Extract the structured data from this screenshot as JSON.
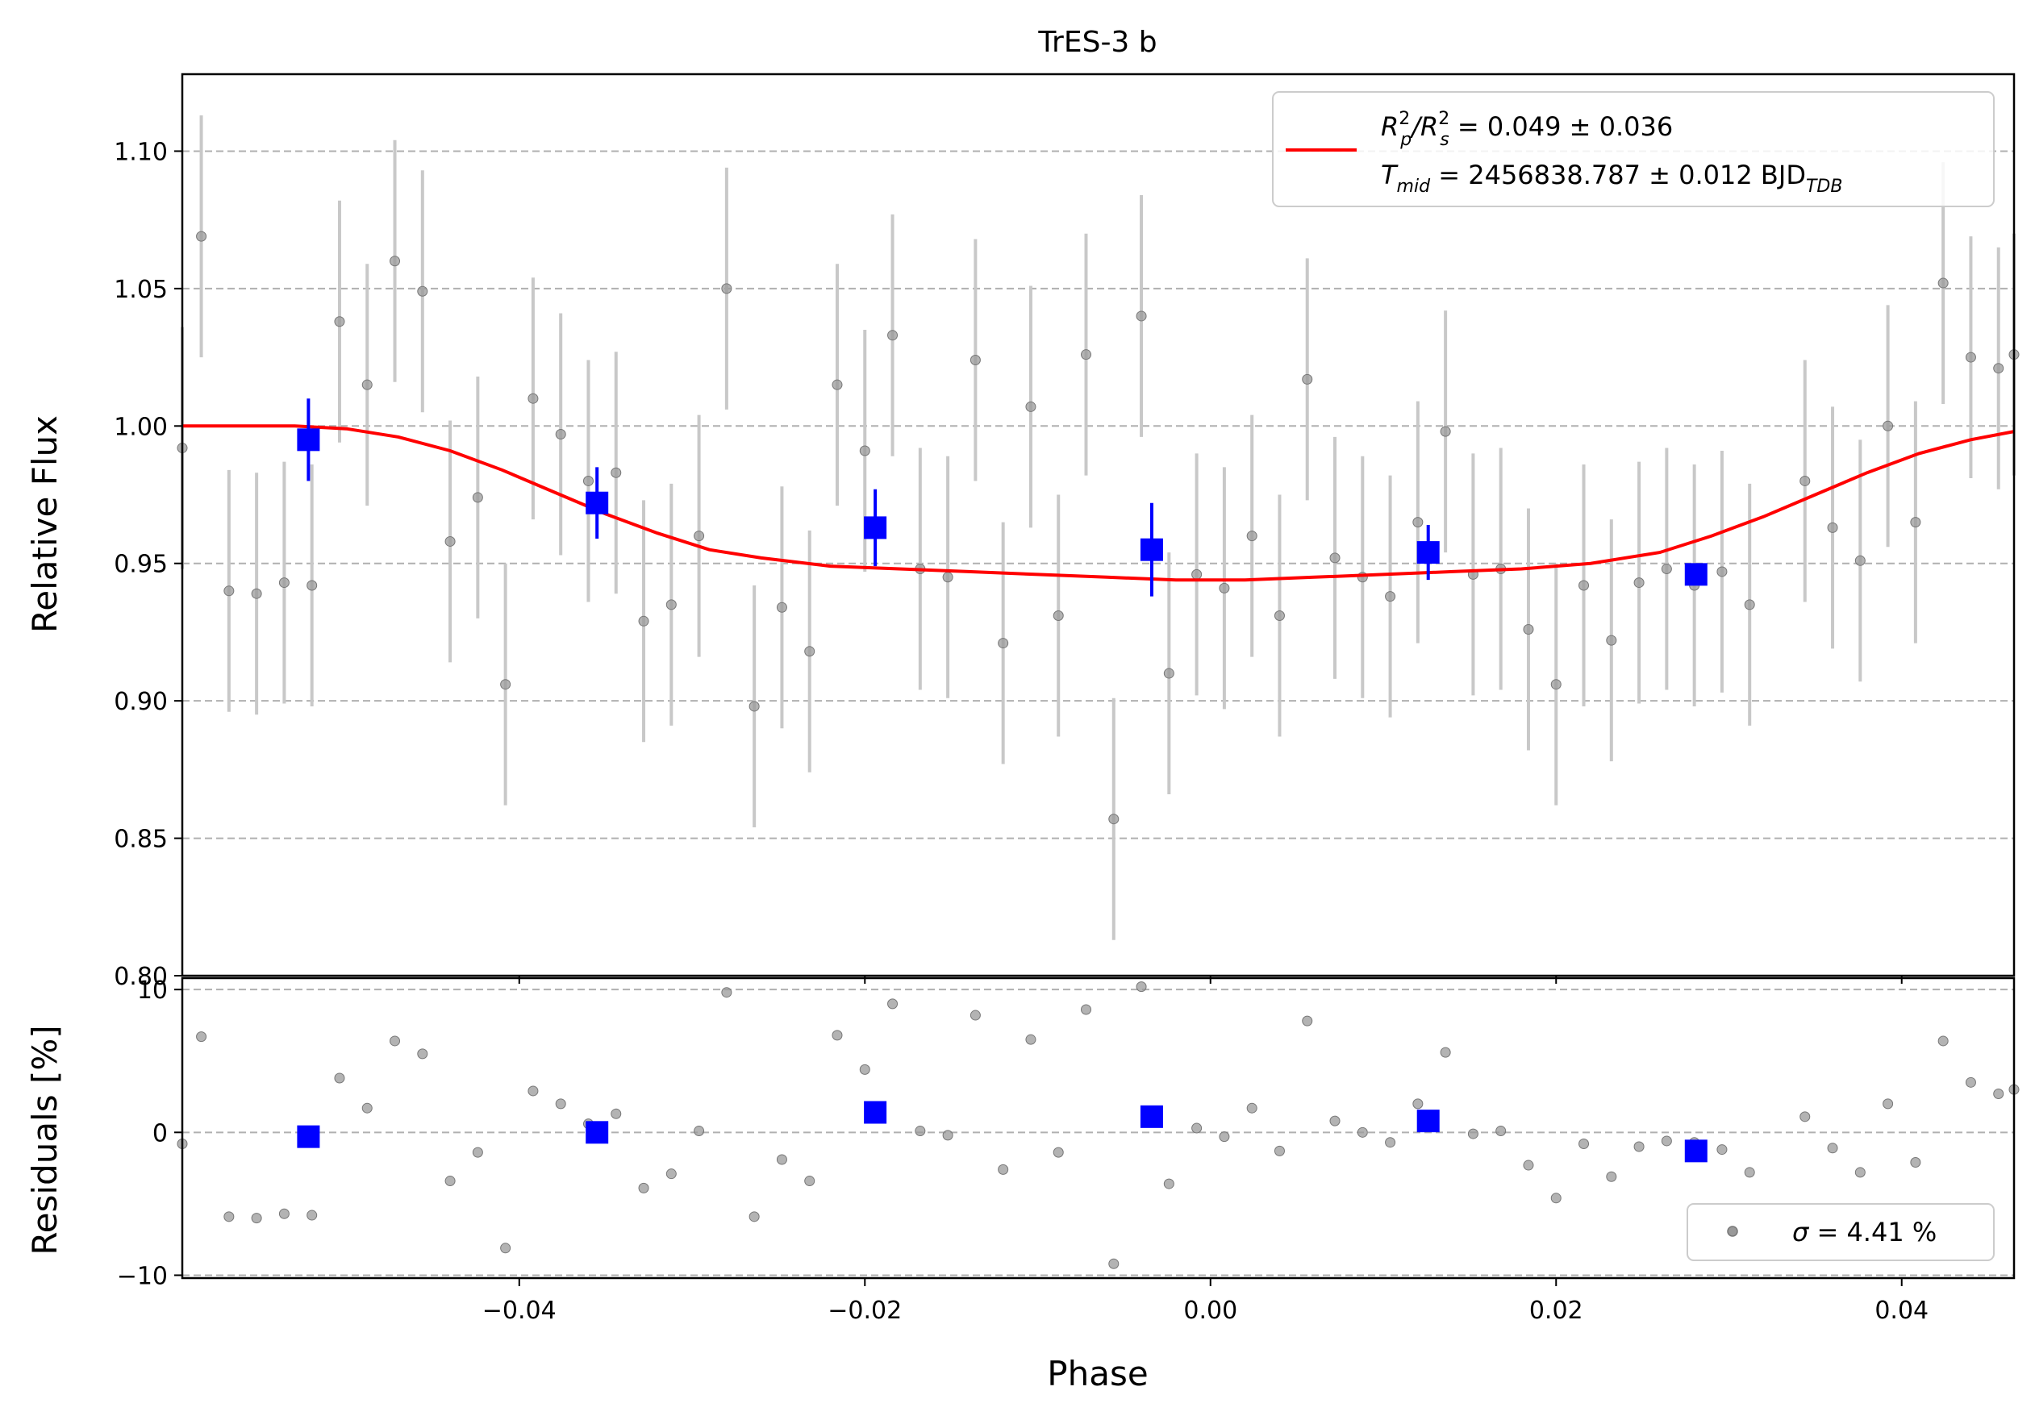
{
  "chart_data": [
    {
      "type": "scatter",
      "panel": "main",
      "title": "TrES-3 b",
      "xlabel": "",
      "ylabel": "Relative Flux",
      "xlim": [
        -0.0595,
        0.0465
      ],
      "ylim": [
        0.8,
        1.128
      ],
      "x_ticks": [
        -0.04,
        -0.02,
        0.0,
        0.02,
        0.04
      ],
      "x_tick_labels": [
        "−0.04",
        "−0.02",
        "0.00",
        "0.02",
        "0.04"
      ],
      "y_ticks": [
        0.8,
        0.85,
        0.9,
        0.95,
        1.0,
        1.05,
        1.1
      ],
      "y_tick_labels": [
        "0.80",
        "0.85",
        "0.90",
        "0.95",
        "1.00",
        "1.05",
        "1.10"
      ],
      "grid": "horizontal dashed",
      "legend_position": "top-right",
      "legend": {
        "line1": "R_p^2/R_s^2 = 0.049 ± 0.036",
        "line2": "T_mid = 2456838.787 ± 0.012 BJD_TDB",
        "parts": {
          "rp": "R",
          "rp_sup": "2",
          "rp_sub": "p",
          "rs": "/R",
          "rs_sup": "2",
          "rs_sub": "s",
          "value1": " = 0.049 ± 0.036",
          "t": "T",
          "t_sub": "mid",
          "value2": " = 2456838.787 ± 0.012 BJD",
          "unit_sub": "TDB"
        }
      },
      "colors": {
        "raw": "#999999",
        "errorbar": "#c8c8c8",
        "binned": "#0000ff",
        "model": "#ff0000",
        "grid": "#b0b0b0"
      },
      "raw_error": 0.044,
      "series": [
        {
          "kind": "raw",
          "points": [
            [
              -0.0595,
              0.992
            ],
            [
              -0.0584,
              1.069
            ],
            [
              -0.0568,
              0.94
            ],
            [
              -0.0552,
              0.939
            ],
            [
              -0.0536,
              0.943
            ],
            [
              -0.052,
              0.942
            ],
            [
              -0.0504,
              1.038
            ],
            [
              -0.0488,
              1.015
            ],
            [
              -0.0472,
              1.06
            ],
            [
              -0.0456,
              1.049
            ],
            [
              -0.044,
              0.958
            ],
            [
              -0.0424,
              0.974
            ],
            [
              -0.0408,
              0.906
            ],
            [
              -0.0392,
              1.01
            ],
            [
              -0.0376,
              0.997
            ],
            [
              -0.036,
              0.98
            ],
            [
              -0.0344,
              0.983
            ],
            [
              -0.0328,
              0.929
            ],
            [
              -0.0312,
              0.935
            ],
            [
              -0.0296,
              0.96
            ],
            [
              -0.028,
              1.05
            ],
            [
              -0.0264,
              0.898
            ],
            [
              -0.0248,
              0.934
            ],
            [
              -0.0232,
              0.918
            ],
            [
              -0.0216,
              1.015
            ],
            [
              -0.02,
              0.991
            ],
            [
              -0.0184,
              1.033
            ],
            [
              -0.0168,
              0.948
            ],
            [
              -0.0152,
              0.945
            ],
            [
              -0.0136,
              1.024
            ],
            [
              -0.012,
              0.921
            ],
            [
              -0.0104,
              1.007
            ],
            [
              -0.0088,
              0.931
            ],
            [
              -0.0072,
              1.026
            ],
            [
              -0.0056,
              0.857
            ],
            [
              -0.004,
              1.04
            ],
            [
              -0.0024,
              0.91
            ],
            [
              -0.0008,
              0.946
            ],
            [
              0.0008,
              0.941
            ],
            [
              0.0024,
              0.96
            ],
            [
              0.004,
              0.931
            ],
            [
              0.0056,
              1.017
            ],
            [
              0.0072,
              0.952
            ],
            [
              0.0088,
              0.945
            ],
            [
              0.0104,
              0.938
            ],
            [
              0.012,
              0.965
            ],
            [
              0.0136,
              0.998
            ],
            [
              0.0152,
              0.946
            ],
            [
              0.0168,
              0.948
            ],
            [
              0.0184,
              0.926
            ],
            [
              0.02,
              0.906
            ],
            [
              0.0216,
              0.942
            ],
            [
              0.0232,
              0.922
            ],
            [
              0.0248,
              0.943
            ],
            [
              0.0264,
              0.948
            ],
            [
              0.028,
              0.942
            ],
            [
              0.0296,
              0.947
            ],
            [
              0.0312,
              0.935
            ],
            [
              0.0344,
              0.98
            ],
            [
              0.036,
              0.963
            ],
            [
              0.0376,
              0.951
            ],
            [
              0.0392,
              1.0
            ],
            [
              0.0408,
              0.965
            ],
            [
              0.0424,
              1.052
            ],
            [
              0.044,
              1.025
            ],
            [
              0.0456,
              1.021
            ],
            [
              0.0465,
              1.026
            ]
          ]
        },
        {
          "kind": "binned",
          "points": [
            [
              -0.0522,
              0.995,
              0.015
            ],
            [
              -0.0355,
              0.972,
              0.013
            ],
            [
              -0.0194,
              0.963,
              0.014
            ],
            [
              -0.0034,
              0.955,
              0.017
            ],
            [
              0.0126,
              0.954,
              0.01
            ],
            [
              0.0281,
              0.946,
              0.004
            ]
          ]
        },
        {
          "kind": "model",
          "points": [
            [
              -0.0595,
              1.0
            ],
            [
              -0.053,
              1.0
            ],
            [
              -0.05,
              0.999
            ],
            [
              -0.047,
              0.996
            ],
            [
              -0.044,
              0.991
            ],
            [
              -0.041,
              0.984
            ],
            [
              -0.038,
              0.976
            ],
            [
              -0.035,
              0.968
            ],
            [
              -0.032,
              0.961
            ],
            [
              -0.029,
              0.955
            ],
            [
              -0.026,
              0.952
            ],
            [
              -0.022,
              0.949
            ],
            [
              -0.018,
              0.948
            ],
            [
              -0.014,
              0.947
            ],
            [
              -0.01,
              0.946
            ],
            [
              -0.006,
              0.945
            ],
            [
              -0.002,
              0.944
            ],
            [
              0.002,
              0.944
            ],
            [
              0.006,
              0.945
            ],
            [
              0.01,
              0.946
            ],
            [
              0.014,
              0.947
            ],
            [
              0.018,
              0.948
            ],
            [
              0.022,
              0.95
            ],
            [
              0.026,
              0.954
            ],
            [
              0.029,
              0.96
            ],
            [
              0.032,
              0.967
            ],
            [
              0.035,
              0.975
            ],
            [
              0.038,
              0.983
            ],
            [
              0.041,
              0.99
            ],
            [
              0.044,
              0.995
            ],
            [
              0.0465,
              0.998
            ]
          ]
        }
      ]
    },
    {
      "type": "scatter",
      "panel": "residuals",
      "xlabel": "Phase",
      "ylabel": "Residuals [%]",
      "xlim": [
        -0.0595,
        0.0465
      ],
      "ylim": [
        -10.2,
        10.8
      ],
      "x_ticks": [
        -0.04,
        -0.02,
        0.0,
        0.02,
        0.04
      ],
      "x_tick_labels": [
        "−0.04",
        "−0.02",
        "0.00",
        "0.02",
        "0.04"
      ],
      "y_ticks": [
        -10,
        0,
        10
      ],
      "y_tick_labels": [
        "−10",
        "0",
        "10"
      ],
      "grid": "horizontal dashed",
      "legend_position": "bottom-right",
      "legend": {
        "sigma": "σ",
        "value": " = 4.41 %"
      },
      "series": [
        {
          "kind": "raw",
          "points": [
            [
              -0.0595,
              -0.8
            ],
            [
              -0.0584,
              6.7
            ],
            [
              -0.0568,
              -5.9
            ],
            [
              -0.0552,
              -6.0
            ],
            [
              -0.0536,
              -5.7
            ],
            [
              -0.052,
              -5.8
            ],
            [
              -0.0504,
              3.8
            ],
            [
              -0.0488,
              1.7
            ],
            [
              -0.0472,
              6.4
            ],
            [
              -0.0456,
              5.5
            ],
            [
              -0.044,
              -3.4
            ],
            [
              -0.0424,
              -1.4
            ],
            [
              -0.0408,
              -8.1
            ],
            [
              -0.0392,
              2.9
            ],
            [
              -0.0376,
              2.0
            ],
            [
              -0.036,
              0.6
            ],
            [
              -0.0344,
              1.3
            ],
            [
              -0.0328,
              -3.9
            ],
            [
              -0.0312,
              -2.9
            ],
            [
              -0.0296,
              0.1
            ],
            [
              -0.028,
              9.8
            ],
            [
              -0.0264,
              -5.9
            ],
            [
              -0.0248,
              -1.9
            ],
            [
              -0.0232,
              -3.4
            ],
            [
              -0.0216,
              6.8
            ],
            [
              -0.02,
              4.4
            ],
            [
              -0.0184,
              9.0
            ],
            [
              -0.0168,
              0.1
            ],
            [
              -0.0152,
              -0.2
            ],
            [
              -0.0136,
              8.2
            ],
            [
              -0.012,
              -2.6
            ],
            [
              -0.0104,
              6.5
            ],
            [
              -0.0088,
              -1.4
            ],
            [
              -0.0072,
              8.6
            ],
            [
              -0.0056,
              -9.2
            ],
            [
              -0.004,
              10.2
            ],
            [
              -0.0024,
              -3.6
            ],
            [
              -0.0008,
              0.3
            ],
            [
              0.0008,
              -0.3
            ],
            [
              0.0024,
              1.7
            ],
            [
              0.004,
              -1.3
            ],
            [
              0.0056,
              7.8
            ],
            [
              0.0072,
              0.8
            ],
            [
              0.0088,
              0.0
            ],
            [
              0.0104,
              -0.7
            ],
            [
              0.012,
              2.0
            ],
            [
              0.0136,
              5.6
            ],
            [
              0.0152,
              -0.1
            ],
            [
              0.0168,
              0.1
            ],
            [
              0.0184,
              -2.3
            ],
            [
              0.02,
              -4.6
            ],
            [
              0.0216,
              -0.8
            ],
            [
              0.0232,
              -3.1
            ],
            [
              0.0248,
              -1.0
            ],
            [
              0.0264,
              -0.6
            ],
            [
              0.028,
              -0.7
            ],
            [
              0.0296,
              -1.2
            ],
            [
              0.0312,
              -2.8
            ],
            [
              0.0344,
              1.1
            ],
            [
              0.036,
              -1.1
            ],
            [
              0.0376,
              -2.8
            ],
            [
              0.0392,
              2.0
            ],
            [
              0.0408,
              -2.1
            ],
            [
              0.0424,
              6.4
            ],
            [
              0.044,
              3.5
            ],
            [
              0.0456,
              2.7
            ],
            [
              0.0465,
              3.0
            ]
          ]
        },
        {
          "kind": "binned",
          "points": [
            [
              -0.0522,
              -0.3
            ],
            [
              -0.0355,
              0.0
            ],
            [
              -0.0194,
              1.4
            ],
            [
              -0.0034,
              1.1
            ],
            [
              0.0126,
              0.8
            ],
            [
              0.0281,
              -1.3
            ]
          ]
        }
      ]
    }
  ]
}
